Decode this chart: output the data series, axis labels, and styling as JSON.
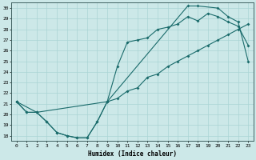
{
  "xlabel": "Humidex (Indice chaleur)",
  "bg_color": "#cce8e8",
  "grid_color": "#aad4d4",
  "line_color": "#1a6b6b",
  "xlim": [
    -0.5,
    23.5
  ],
  "ylim": [
    17.5,
    30.5
  ],
  "xticks": [
    0,
    1,
    2,
    3,
    4,
    5,
    6,
    7,
    8,
    9,
    10,
    11,
    12,
    13,
    14,
    15,
    16,
    17,
    18,
    19,
    20,
    21,
    22,
    23
  ],
  "yticks": [
    18,
    19,
    20,
    21,
    22,
    23,
    24,
    25,
    26,
    27,
    28,
    29,
    30
  ],
  "line1_x": [
    0,
    1,
    2,
    3,
    4,
    5,
    6,
    7,
    8,
    9,
    10,
    11,
    12,
    13,
    14,
    15,
    16,
    17,
    18,
    19,
    20,
    21,
    22,
    23
  ],
  "line1_y": [
    21.2,
    20.2,
    20.2,
    19.3,
    18.3,
    18.0,
    17.8,
    17.8,
    19.3,
    21.2,
    21.5,
    22.2,
    22.5,
    23.5,
    23.8,
    24.5,
    25.0,
    25.5,
    26.0,
    26.5,
    27.0,
    27.5,
    28.0,
    28.5
  ],
  "line2_x": [
    0,
    1,
    2,
    3,
    4,
    5,
    6,
    7,
    8,
    9,
    10,
    11,
    12,
    13,
    14,
    15,
    16,
    17,
    18,
    19,
    20,
    21,
    22,
    23
  ],
  "line2_y": [
    21.2,
    20.2,
    20.2,
    19.3,
    18.3,
    18.0,
    17.8,
    17.8,
    19.3,
    21.2,
    24.5,
    26.8,
    27.0,
    27.2,
    28.0,
    28.2,
    28.5,
    29.2,
    28.8,
    29.5,
    29.2,
    28.7,
    28.3,
    26.5
  ],
  "line3_x": [
    0,
    2,
    9,
    17,
    18,
    20,
    21,
    22,
    23
  ],
  "line3_y": [
    21.2,
    20.2,
    21.2,
    30.2,
    30.2,
    30.0,
    29.2,
    28.7,
    25.0
  ]
}
